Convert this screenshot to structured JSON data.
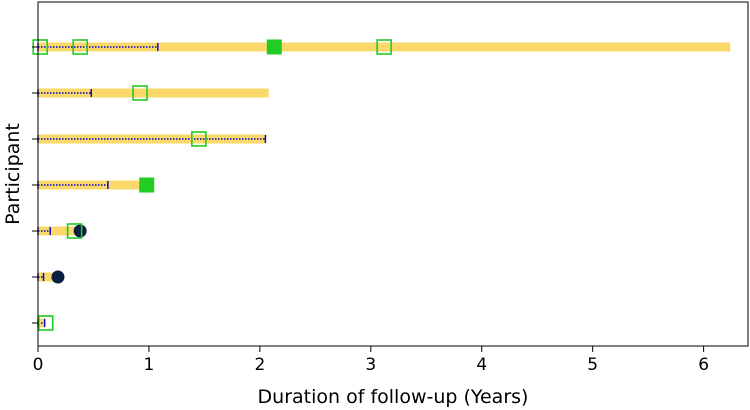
{
  "chart_data": {
    "type": "swimmer",
    "xlabel": "Duration of follow-up (Years)",
    "ylabel": "Participant",
    "xlim": [
      0,
      6.4
    ],
    "xticks": [
      0,
      1,
      2,
      3,
      4,
      5,
      6
    ],
    "grid": false,
    "colors": {
      "bar": "#FAD96A",
      "errorbar": "#0000CD",
      "open_square": "#22CC22",
      "filled_square": "#22CC22",
      "circle": "#0A1F44"
    },
    "participants": [
      {
        "id": 7,
        "duration": 6.24,
        "err": 1.08,
        "open_squares": [
          0.02,
          0.38,
          3.12
        ],
        "filled_squares": [
          2.13
        ],
        "circles": []
      },
      {
        "id": 6,
        "duration": 2.08,
        "err": 0.48,
        "open_squares": [
          0.92
        ],
        "filled_squares": [],
        "circles": []
      },
      {
        "id": 5,
        "duration": 2.05,
        "err": 2.05,
        "open_squares": [
          1.45
        ],
        "filled_squares": [],
        "circles": []
      },
      {
        "id": 4,
        "duration": 0.98,
        "err": 0.63,
        "open_squares": [],
        "filled_squares": [
          0.98
        ],
        "circles": []
      },
      {
        "id": 3,
        "duration": 0.38,
        "err": 0.11,
        "open_squares": [
          0.33
        ],
        "filled_squares": [],
        "circles": [
          0.38
        ]
      },
      {
        "id": 2,
        "duration": 0.18,
        "err": 0.05,
        "open_squares": [],
        "filled_squares": [],
        "circles": [
          0.18
        ]
      },
      {
        "id": 1,
        "duration": 0.06,
        "err": 0.06,
        "open_squares": [
          0.07
        ],
        "filled_squares": [],
        "circles": []
      }
    ]
  }
}
